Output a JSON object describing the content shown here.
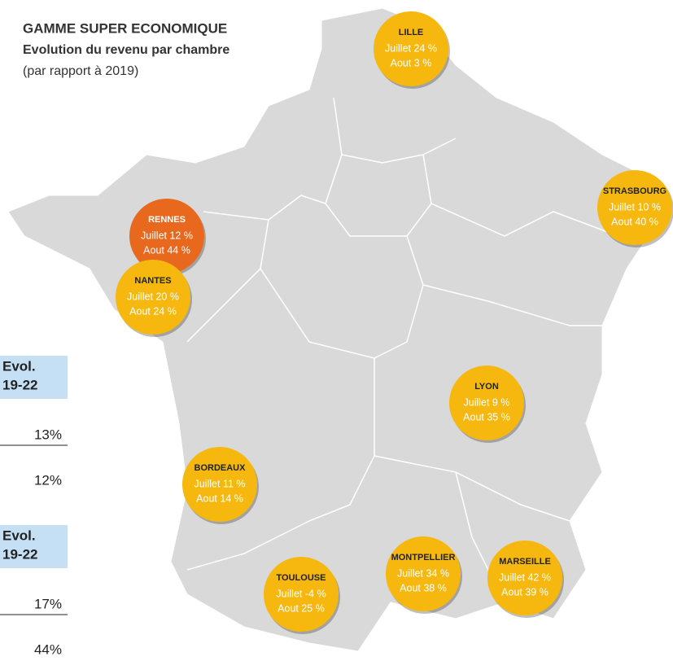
{
  "header": {
    "title": "GAMME SUPER ECONOMIQUE",
    "subtitle": "Evolution du revenu par chambre",
    "note": "(par rapport à 2019)"
  },
  "cities": [
    {
      "name": "LILLE",
      "july": "Juillet 24 %",
      "august": "Aout 3 %"
    },
    {
      "name": "STRASBOURG",
      "july": "Juillet 10 %",
      "august": "Aout 40 %"
    },
    {
      "name": "RENNES",
      "july": "Juillet 12 %",
      "august": "Aout 44 %"
    },
    {
      "name": "NANTES",
      "july": "Juillet 20 %",
      "august": "Aout 24 %"
    },
    {
      "name": "LYON",
      "july": "Juillet 9 %",
      "august": "Aout 35 %"
    },
    {
      "name": "BORDEAUX",
      "july": "Juillet 11 %",
      "august": "Aout 14 %"
    },
    {
      "name": "TOULOUSE",
      "july": "Juillet -4 %",
      "august": "Aout 25 %"
    },
    {
      "name": "MONTPELLIER",
      "july": "Juillet 34 %",
      "august": "Aout 38 %"
    },
    {
      "name": "MARSEILLE",
      "july": "Juillet 42 %",
      "august": "Aout 39 %"
    }
  ],
  "side_table": [
    {
      "header": [
        "Evol.",
        "19-22"
      ],
      "rows": [
        "13%",
        "12%"
      ]
    },
    {
      "header": [
        "Evol.",
        "19-22"
      ],
      "rows": [
        "17%",
        "44%"
      ]
    }
  ]
}
